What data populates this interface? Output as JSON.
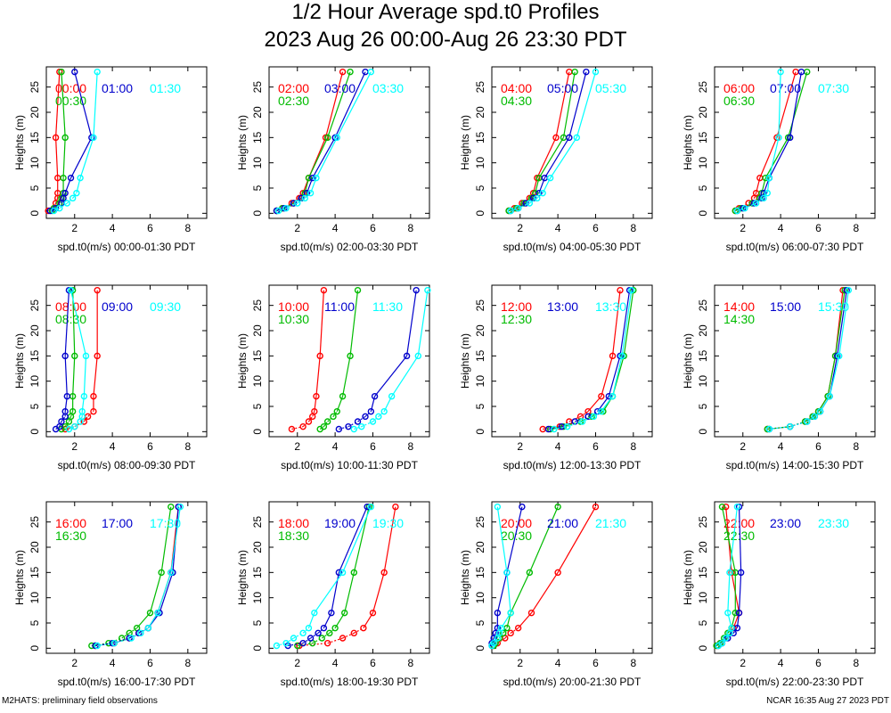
{
  "title": "1/2 Hour Average spd.t0 Profiles",
  "subtitle": "2023 Aug 26 00:00-Aug 26 23:30 PDT",
  "footer_left": "M2HATS: preliminary field observations",
  "footer_right": "NCAR 16:35 Aug 27 2023 PDT",
  "colors": [
    "#ff0000",
    "#00bb00",
    "#0000cc",
    "#00ffff"
  ],
  "chart_data": {
    "type": "line",
    "ylabel": "Heights (m)",
    "xlim": [
      0.5,
      9
    ],
    "ylim": [
      -1,
      29
    ],
    "xticks": [
      2,
      4,
      6,
      8
    ],
    "yticks": [
      0,
      5,
      10,
      15,
      20,
      25
    ],
    "heights": [
      0.5,
      1,
      2,
      3,
      4,
      7,
      15,
      28
    ],
    "panels": [
      {
        "xlabel": "spd.t0(m/s) 00:00-01:30 PDT",
        "series": [
          {
            "name": "00:00",
            "values": [
              0.6,
              0.9,
              1.0,
              1.1,
              1.1,
              1.1,
              1.0,
              1.2
            ]
          },
          {
            "name": "00:30",
            "values": [
              0.8,
              0.9,
              1.2,
              1.3,
              1.4,
              1.4,
              1.5,
              1.3
            ]
          },
          {
            "name": "01:00",
            "values": [
              0.7,
              1.0,
              1.3,
              1.4,
              1.5,
              1.8,
              2.9,
              2.0
            ]
          },
          {
            "name": "01:30",
            "values": [
              0.9,
              1.2,
              1.6,
              1.9,
              2.1,
              2.3,
              3.0,
              3.2
            ]
          }
        ]
      },
      {
        "xlabel": "spd.t0(m/s) 02:00-03:30 PDT",
        "series": [
          {
            "name": "02:00",
            "values": [
              0.9,
              1.2,
              1.7,
              2.1,
              2.3,
              2.6,
              3.5,
              4.4
            ]
          },
          {
            "name": "02:30",
            "values": [
              0.9,
              1.2,
              1.8,
              2.2,
              2.4,
              2.6,
              3.6,
              4.8
            ]
          },
          {
            "name": "03:00",
            "values": [
              0.9,
              1.3,
              1.8,
              2.2,
              2.5,
              2.8,
              4.0,
              5.6
            ]
          },
          {
            "name": "03:30",
            "values": [
              1.0,
              1.4,
              2.0,
              2.4,
              2.7,
              3.0,
              4.1,
              5.9
            ]
          }
        ]
      },
      {
        "xlabel": "spd.t0(m/s) 04:00-05:30 PDT",
        "series": [
          {
            "name": "04:00",
            "values": [
              1.4,
              1.7,
              2.1,
              2.5,
              2.7,
              2.9,
              3.9,
              4.6
            ]
          },
          {
            "name": "04:30",
            "values": [
              1.4,
              1.8,
              2.2,
              2.6,
              2.8,
              3.0,
              4.3,
              4.9
            ]
          },
          {
            "name": "05:00",
            "values": [
              1.5,
              1.9,
              2.3,
              2.7,
              3.0,
              3.3,
              4.6,
              5.5
            ]
          },
          {
            "name": "05:30",
            "values": [
              1.5,
              1.9,
              2.5,
              2.9,
              3.2,
              3.6,
              5.0,
              6.0
            ]
          }
        ]
      },
      {
        "xlabel": "spd.t0(m/s) 06:00-07:30 PDT",
        "series": [
          {
            "name": "06:00",
            "values": [
              1.6,
              1.8,
              2.3,
              2.6,
              2.7,
              2.9,
              3.8,
              4.8
            ]
          },
          {
            "name": "06:30",
            "values": [
              1.6,
              1.9,
              2.5,
              2.9,
              3.0,
              3.2,
              4.4,
              5.4
            ]
          },
          {
            "name": "07:00",
            "values": [
              1.7,
              2.0,
              2.6,
              3.0,
              3.1,
              3.4,
              4.5,
              5.1
            ]
          },
          {
            "name": "07:30",
            "values": [
              1.7,
              2.1,
              2.7,
              3.1,
              3.3,
              3.4,
              3.9,
              4.0
            ]
          }
        ]
      },
      {
        "xlabel": "spd.t0(m/s) 08:00-09:30 PDT",
        "series": [
          {
            "name": "08:00",
            "values": [
              1.5,
              2.0,
              2.5,
              2.7,
              3.0,
              3.0,
              3.2,
              3.2
            ]
          },
          {
            "name": "08:30",
            "values": [
              1.3,
              1.5,
              1.7,
              1.8,
              1.9,
              1.9,
              2.0,
              1.9
            ]
          },
          {
            "name": "09:00",
            "values": [
              1.0,
              1.2,
              1.3,
              1.5,
              1.5,
              1.6,
              1.5,
              1.7
            ]
          },
          {
            "name": "09:30",
            "values": [
              1.7,
              2.0,
              2.3,
              2.4,
              2.4,
              2.5,
              2.6,
              1.8
            ]
          }
        ]
      },
      {
        "xlabel": "spd.t0(m/s) 10:00-11:30 PDT",
        "series": [
          {
            "name": "10:00",
            "values": [
              1.7,
              2.3,
              2.6,
              2.8,
              2.9,
              3.0,
              3.2,
              3.4
            ]
          },
          {
            "name": "10:30",
            "values": [
              3.2,
              3.4,
              3.6,
              3.9,
              4.1,
              4.4,
              4.8,
              5.2
            ]
          },
          {
            "name": "11:00",
            "values": [
              4.2,
              4.7,
              5.2,
              5.6,
              5.9,
              6.1,
              7.8,
              8.3
            ]
          },
          {
            "name": "11:30",
            "values": [
              5.0,
              5.4,
              6.0,
              6.3,
              6.6,
              7.0,
              8.4,
              8.9
            ]
          }
        ]
      },
      {
        "xlabel": "spd.t0(m/s) 12:00-13:30 PDT",
        "series": [
          {
            "name": "12:00",
            "values": [
              3.2,
              4.1,
              4.6,
              5.2,
              5.6,
              6.3,
              6.9,
              7.3
            ]
          },
          {
            "name": "12:30",
            "values": [
              3.6,
              4.3,
              5.2,
              5.8,
              6.4,
              6.9,
              7.5,
              8.0
            ]
          },
          {
            "name": "13:00",
            "values": [
              3.5,
              4.2,
              4.9,
              5.6,
              6.1,
              6.7,
              7.3,
              7.8
            ]
          },
          {
            "name": "13:30",
            "values": [
              3.8,
              4.5,
              5.3,
              5.9,
              6.3,
              6.9,
              7.4,
              7.9
            ]
          }
        ]
      },
      {
        "xlabel": "spd.t0(m/s) 14:00-15:30 PDT",
        "series": [
          {
            "name": "14:00",
            "values": [
              3.3,
              4.5,
              5.3,
              5.7,
              6.0,
              6.5,
              6.9,
              7.3
            ]
          },
          {
            "name": "14:30",
            "values": [
              3.3,
              4.5,
              5.3,
              5.7,
              6.0,
              6.5,
              6.9,
              7.4
            ]
          },
          {
            "name": "15:00",
            "values": [
              3.4,
              4.5,
              5.4,
              5.8,
              6.1,
              6.6,
              7.0,
              7.5
            ]
          },
          {
            "name": "15:30",
            "values": [
              3.4,
              4.5,
              5.4,
              5.8,
              6.1,
              6.6,
              7.1,
              7.6
            ]
          }
        ]
      },
      {
        "xlabel": "spd.t0(m/s) 16:00-17:30 PDT",
        "series": [
          {
            "name": "16:00",
            "values": [
              3.1,
              4.1,
              4.9,
              5.4,
              5.9,
              6.4,
              7.1,
              7.5
            ]
          },
          {
            "name": "16:30",
            "values": [
              2.9,
              3.8,
              4.5,
              4.9,
              5.3,
              6.0,
              6.6,
              7.1
            ]
          },
          {
            "name": "17:00",
            "values": [
              3.1,
              4.0,
              4.9,
              5.4,
              5.9,
              6.5,
              7.2,
              7.5
            ]
          },
          {
            "name": "17:30",
            "values": [
              3.2,
              4.1,
              5.0,
              5.5,
              5.9,
              6.4,
              7.1,
              7.6
            ]
          }
        ]
      },
      {
        "xlabel": "spd.t0(m/s) 18:00-19:30 PDT",
        "series": [
          {
            "name": "18:00",
            "values": [
              2.1,
              3.6,
              4.4,
              5.0,
              5.5,
              6.0,
              6.6,
              7.2
            ]
          },
          {
            "name": "18:30",
            "values": [
              2.0,
              2.8,
              3.3,
              3.7,
              4.0,
              4.5,
              5.0,
              5.8
            ]
          },
          {
            "name": "19:00",
            "values": [
              1.5,
              2.3,
              2.7,
              3.1,
              3.4,
              3.8,
              4.2,
              5.7
            ]
          },
          {
            "name": "19:30",
            "values": [
              0.9,
              1.4,
              1.8,
              2.3,
              2.6,
              2.9,
              4.4,
              5.9
            ]
          }
        ]
      },
      {
        "xlabel": "spd.t0(m/s) 20:00-21:30 PDT",
        "series": [
          {
            "name": "20:00",
            "values": [
              0.6,
              0.8,
              1.2,
              1.5,
              1.9,
              2.6,
              4.0,
              6.0
            ]
          },
          {
            "name": "20:30",
            "values": [
              0.6,
              0.7,
              0.9,
              1.1,
              1.3,
              1.5,
              2.5,
              4.0
            ]
          },
          {
            "name": "21:00",
            "values": [
              0.5,
              0.5,
              0.6,
              0.7,
              0.8,
              0.8,
              1.3,
              2.1
            ]
          },
          {
            "name": "21:30",
            "values": [
              0.5,
              0.6,
              0.8,
              0.9,
              1.0,
              1.5,
              1.3,
              0.8
            ]
          }
        ]
      },
      {
        "xlabel": "spd.t0(m/s) 22:00-23:30 PDT",
        "series": [
          {
            "name": "22:00",
            "values": [
              0.6,
              0.8,
              1.1,
              1.3,
              1.5,
              1.8,
              1.4,
              1.1
            ]
          },
          {
            "name": "22:30",
            "values": [
              0.6,
              0.8,
              1.0,
              1.2,
              1.4,
              1.6,
              1.6,
              0.9
            ]
          },
          {
            "name": "23:00",
            "values": [
              0.7,
              0.9,
              1.2,
              1.5,
              1.7,
              1.8,
              1.9,
              1.8
            ]
          },
          {
            "name": "23:30",
            "values": [
              0.7,
              0.9,
              1.1,
              1.3,
              1.4,
              1.2,
              1.3,
              1.7
            ]
          }
        ]
      }
    ]
  }
}
